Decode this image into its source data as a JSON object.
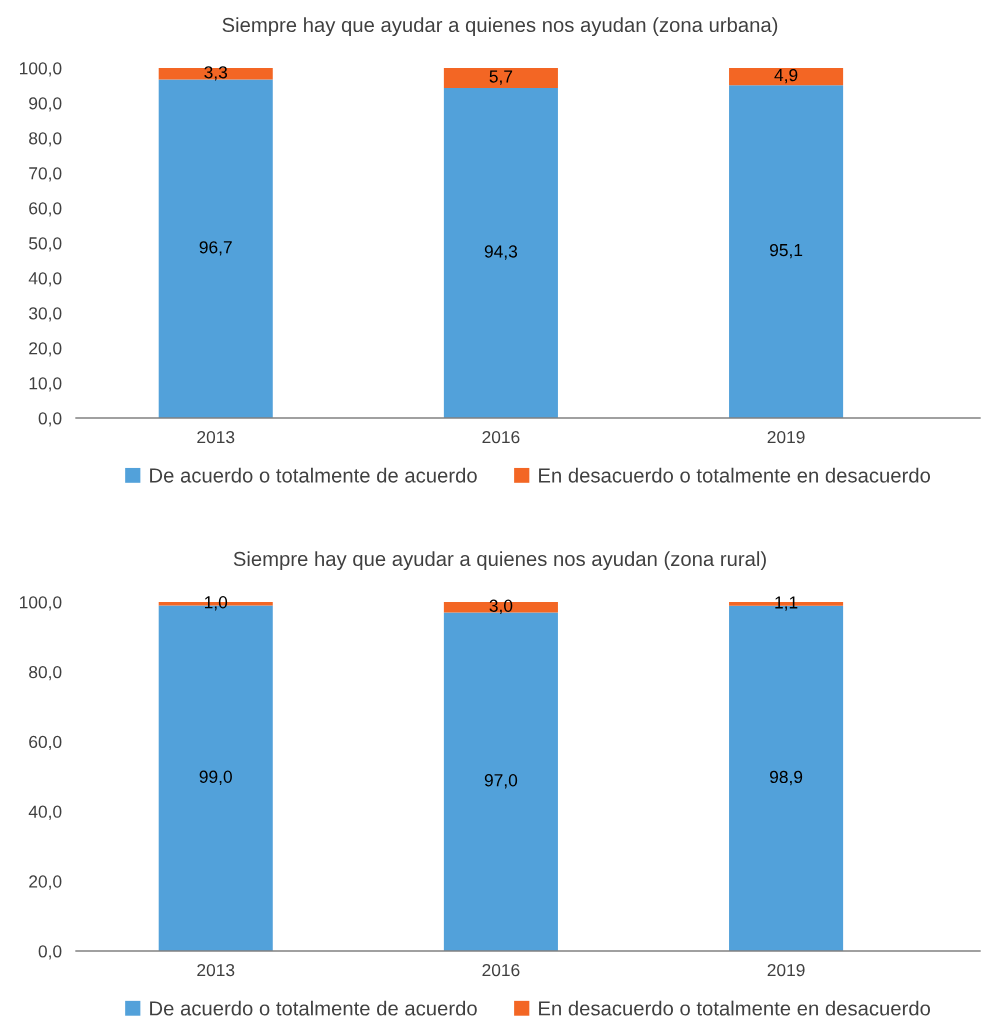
{
  "chart_data": [
    {
      "type": "bar",
      "title": "Siempre hay que ayudar a quienes nos ayudan (zona urbana)",
      "categories": [
        "2013",
        "2016",
        "2019"
      ],
      "stacked": true,
      "series": [
        {
          "name": "De acuerdo o totalmente de acuerdo",
          "color": "#52a1da",
          "values": [
            96.7,
            94.3,
            95.1
          ],
          "value_labels": [
            "96,7",
            "94,3",
            "95,1"
          ]
        },
        {
          "name": "En desacuerdo o totalmente en desacuerdo",
          "color": "#f36624",
          "values": [
            3.3,
            5.7,
            4.9
          ],
          "value_labels": [
            "3,3",
            "5,7",
            "4,9"
          ]
        }
      ],
      "ylim": [
        0,
        100
      ],
      "yticks": [
        {
          "value": 0,
          "label": "0,0"
        },
        {
          "value": 10,
          "label": "10,0"
        },
        {
          "value": 20,
          "label": "20,0"
        },
        {
          "value": 30,
          "label": "30,0"
        },
        {
          "value": 40,
          "label": "40,0"
        },
        {
          "value": 50,
          "label": "50,0"
        },
        {
          "value": 60,
          "label": "60,0"
        },
        {
          "value": 70,
          "label": "70,0"
        },
        {
          "value": 80,
          "label": "80,0"
        },
        {
          "value": 90,
          "label": "90,0"
        },
        {
          "value": 100,
          "label": "100,0"
        }
      ],
      "grid": false,
      "legend": "bottom"
    },
    {
      "type": "bar",
      "title": "Siempre hay que ayudar a quienes nos ayudan (zona rural)",
      "categories": [
        "2013",
        "2016",
        "2019"
      ],
      "stacked": true,
      "series": [
        {
          "name": "De acuerdo o totalmente de acuerdo",
          "color": "#52a1da",
          "values": [
            99.0,
            97.0,
            98.9
          ],
          "value_labels": [
            "99,0",
            "97,0",
            "98,9"
          ]
        },
        {
          "name": "En desacuerdo o totalmente en desacuerdo",
          "color": "#f36624",
          "values": [
            1.0,
            3.0,
            1.1
          ],
          "value_labels": [
            "1,0",
            "3,0",
            "1,1"
          ]
        }
      ],
      "ylim": [
        0,
        100
      ],
      "yticks": [
        {
          "value": 0,
          "label": "0,0"
        },
        {
          "value": 20,
          "label": "20,0"
        },
        {
          "value": 40,
          "label": "40,0"
        },
        {
          "value": 60,
          "label": "60,0"
        },
        {
          "value": 80,
          "label": "80,0"
        },
        {
          "value": 100,
          "label": "100,0"
        }
      ],
      "grid": false,
      "legend": "bottom"
    }
  ]
}
